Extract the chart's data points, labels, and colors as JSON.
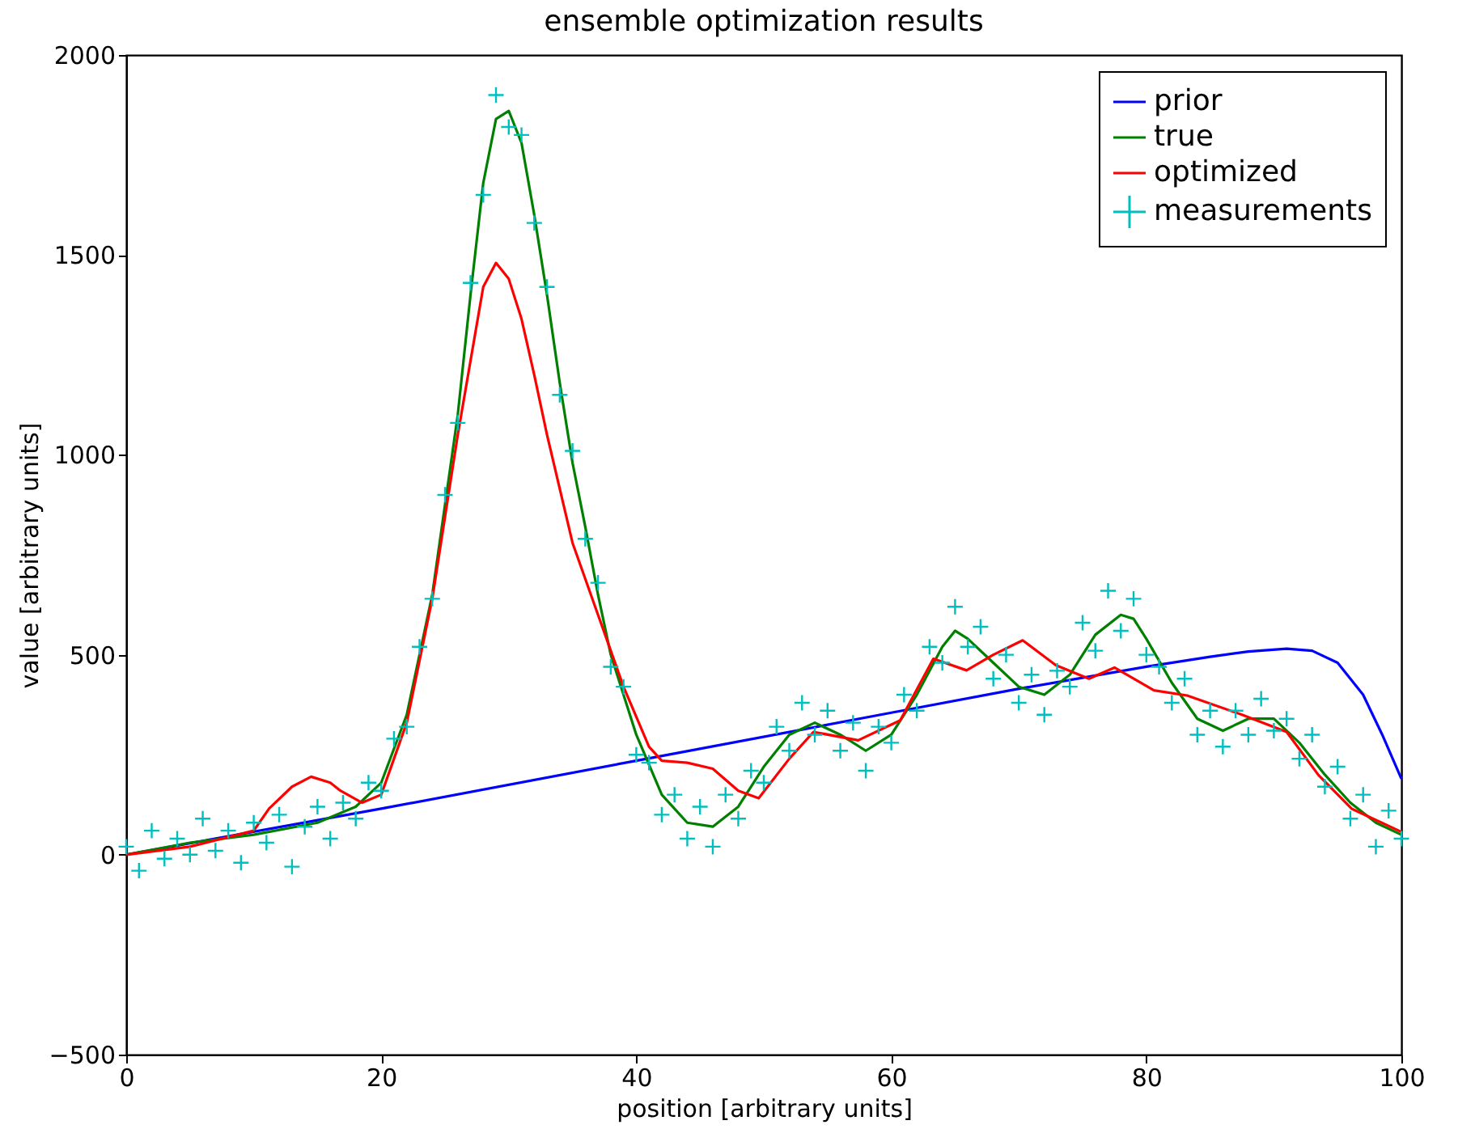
{
  "chart_data": {
    "type": "line",
    "title": "ensemble optimization results",
    "xlabel": "position [arbitrary units]",
    "ylabel": "value [arbitrary units]",
    "xlim": [
      0,
      100
    ],
    "xticks": [
      0,
      20,
      40,
      60,
      80,
      100
    ],
    "ylim": [
      -500,
      2000
    ],
    "yticks": [
      -500,
      0,
      500,
      1000,
      1500,
      2000
    ],
    "grid": false,
    "legend": "top right",
    "series": [
      {
        "name": "prior",
        "color": "#0000ff",
        "x": [
          0,
          20,
          40,
          60,
          70,
          80,
          85,
          88,
          91,
          93,
          95,
          97,
          98.5,
          100
        ],
        "values": [
          0,
          115,
          235,
          355,
          415,
          470,
          495,
          508,
          515,
          510,
          480,
          400,
          300,
          190
        ]
      },
      {
        "name": "true",
        "color": "#008000",
        "x": [
          0,
          5,
          10,
          15,
          18,
          20,
          22,
          24,
          26,
          27,
          28,
          29,
          30,
          31,
          32,
          33,
          34,
          35,
          36,
          37,
          38,
          40,
          42,
          44,
          46,
          48,
          50,
          52,
          54,
          56,
          58,
          60,
          62,
          64,
          65,
          66,
          68,
          70,
          72,
          74,
          76,
          78,
          79,
          80,
          82,
          84,
          86,
          88,
          90,
          92,
          94,
          96,
          98,
          100
        ],
        "values": [
          0,
          30,
          50,
          80,
          120,
          180,
          350,
          650,
          1100,
          1400,
          1680,
          1840,
          1860,
          1780,
          1600,
          1400,
          1180,
          980,
          820,
          650,
          500,
          300,
          150,
          80,
          70,
          120,
          220,
          300,
          330,
          300,
          260,
          300,
          400,
          520,
          560,
          540,
          480,
          420,
          400,
          450,
          550,
          600,
          590,
          540,
          430,
          340,
          310,
          340,
          340,
          280,
          200,
          130,
          80,
          50
        ]
      },
      {
        "name": "optimized",
        "color": "#ff0000",
        "x": [
          0,
          5,
          10,
          11.2,
          13,
          14.5,
          16,
          16.8,
          18.5,
          20,
          22,
          24,
          26,
          28,
          29,
          30,
          31,
          32,
          33,
          35,
          37,
          39,
          41,
          42,
          44,
          46,
          48,
          49.6,
          52,
          53.9,
          57.4,
          60.7,
          63.3,
          65.9,
          68,
          70.3,
          72.9,
          75.5,
          77.5,
          80.6,
          83.2,
          87.5,
          91,
          93.5,
          96.1,
          100
        ],
        "values": [
          0,
          20,
          60,
          115,
          170,
          195,
          180,
          160,
          130,
          150,
          330,
          640,
          1050,
          1420,
          1480,
          1440,
          1340,
          1200,
          1050,
          780,
          600,
          420,
          270,
          235,
          230,
          215,
          160,
          141,
          240,
          307,
          286,
          336,
          490,
          461,
          500,
          536,
          474,
          440,
          468,
          411,
          398,
          350,
          307,
          199,
          115,
          57
        ]
      },
      {
        "name": "measurements",
        "type": "scatter",
        "marker": "cross",
        "color": "#00bfbf",
        "x": [
          0,
          1,
          2,
          3,
          4,
          5,
          6,
          7,
          8,
          9,
          10,
          11,
          12,
          13,
          14,
          15,
          16,
          17,
          18,
          19,
          20,
          21,
          22,
          23,
          24,
          25,
          26,
          27,
          28,
          29,
          30,
          31,
          32,
          33,
          34,
          35,
          36,
          37,
          38,
          39,
          40,
          41,
          42,
          43,
          44,
          45,
          46,
          47,
          48,
          49,
          50,
          51,
          52,
          53,
          54,
          55,
          56,
          57,
          58,
          59,
          60,
          61,
          62,
          63,
          64,
          65,
          66,
          67,
          68,
          69,
          70,
          71,
          72,
          73,
          74,
          75,
          76,
          77,
          78,
          79,
          80,
          81,
          82,
          83,
          84,
          85,
          86,
          87,
          88,
          89,
          90,
          91,
          92,
          93,
          94,
          95,
          96,
          97,
          98,
          99,
          100
        ],
        "values": [
          20,
          -40,
          60,
          -10,
          40,
          0,
          90,
          10,
          60,
          -20,
          80,
          30,
          100,
          -30,
          70,
          120,
          40,
          130,
          90,
          180,
          160,
          290,
          320,
          520,
          640,
          900,
          1080,
          1430,
          1650,
          1900,
          1820,
          1800,
          1580,
          1420,
          1150,
          1010,
          790,
          680,
          470,
          420,
          250,
          230,
          100,
          150,
          40,
          120,
          20,
          150,
          90,
          210,
          180,
          320,
          260,
          380,
          300,
          360,
          260,
          330,
          210,
          320,
          280,
          400,
          360,
          520,
          480,
          620,
          520,
          570,
          440,
          500,
          380,
          450,
          350,
          460,
          420,
          580,
          510,
          660,
          560,
          640,
          500,
          470,
          380,
          440,
          300,
          360,
          270,
          360,
          300,
          390,
          310,
          340,
          240,
          300,
          170,
          220,
          90,
          150,
          20,
          110,
          40
        ]
      }
    ]
  }
}
